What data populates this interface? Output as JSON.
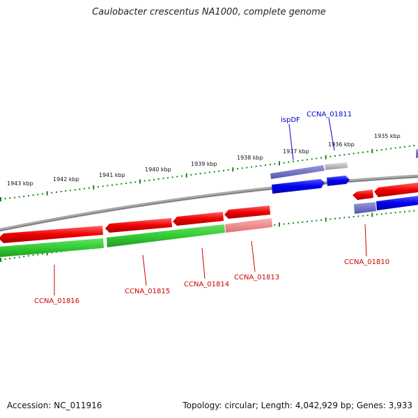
{
  "title": "Caulobacter crescentus NA1000, complete genome",
  "footer": {
    "accession": "Accession: NC_011916",
    "stats": "Topology: circular; Length: 4,042,929 bp; Genes: 3,933"
  },
  "scale_labels": [
    "1943 kbp",
    "1942 kbp",
    "1941 kbp",
    "1940 kbp",
    "1939 kbp",
    "1938 kbp",
    "1937 kbp",
    "1936 kbp",
    "1935 kbp"
  ],
  "top_labels": [
    {
      "text": "ispDF",
      "color": "#0000cc"
    },
    {
      "text": "CCNA_01811",
      "color": "#0000cc"
    }
  ],
  "bottom_labels": [
    {
      "text": "CCNA_01816",
      "color": "#cc0000"
    },
    {
      "text": "CCNA_01815",
      "color": "#cc0000"
    },
    {
      "text": "CCNA_01814",
      "color": "#cc0000"
    },
    {
      "text": "CCNA_01813",
      "color": "#cc0000"
    },
    {
      "text": "CCNA_01810",
      "color": "#cc0000"
    }
  ],
  "colors": {
    "forward_gene": "#0000ee",
    "forward_gene_light": "#7070c8",
    "reverse_gene": "#ee0000",
    "reverse_gene_light": "#f09090",
    "cds_green": "#33cc33",
    "cds_green_light": "#88dd88",
    "pseudo_gray": "#b0b0b0",
    "backbone": "#888888",
    "tick": "#118811"
  }
}
